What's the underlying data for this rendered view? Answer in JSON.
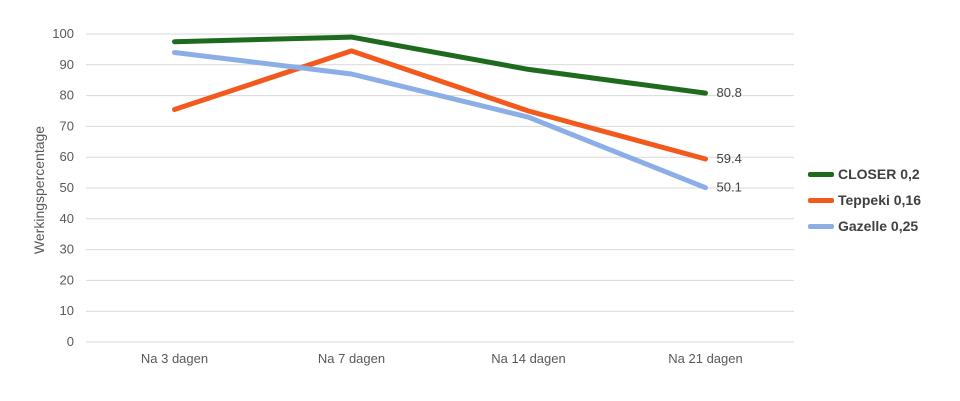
{
  "chart_data": {
    "type": "line",
    "categories": [
      "Na 3 dagen",
      "Na 7 dagen",
      "Na 14 dagen",
      "Na 21 dagen"
    ],
    "ylabel": "Werkingspercentage",
    "xlabel": "",
    "ylim": [
      0,
      100
    ],
    "yticks": [
      0,
      10,
      20,
      30,
      40,
      50,
      60,
      70,
      80,
      90,
      100
    ],
    "grid": true,
    "legend_position": "right",
    "series": [
      {
        "name": "CLOSER 0,2",
        "color": "#1e6b1e",
        "values": [
          97.5,
          99,
          88.5,
          80.8
        ],
        "end_label": "80.8"
      },
      {
        "name": "Teppeki 0,16",
        "color": "#f25a1d",
        "values": [
          75.5,
          94.5,
          75,
          59.4
        ],
        "end_label": "59.4"
      },
      {
        "name": "Gazelle 0,25",
        "color": "#8caee6",
        "values": [
          94,
          87,
          73,
          50.1
        ],
        "end_label": "50.1"
      }
    ]
  }
}
